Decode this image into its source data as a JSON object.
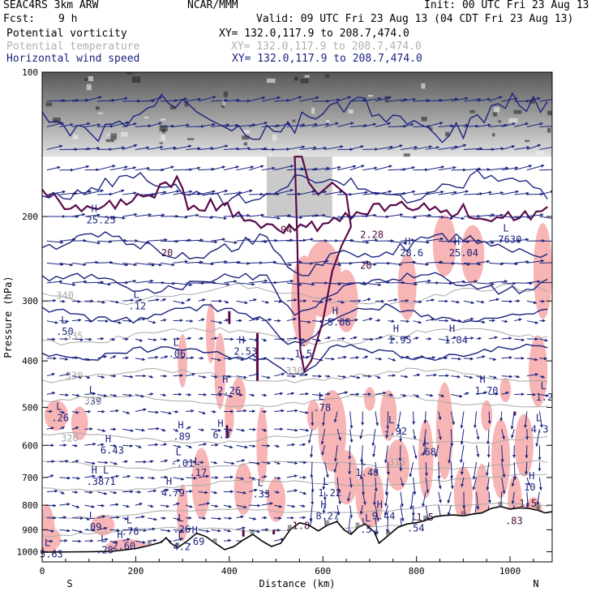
{
  "header": {
    "model_label": "SEAC4RS  3km ARW",
    "fcst_label": "Fcst:",
    "fcst_value": "9 h",
    "org": "NCAR/MMM",
    "init": "Init: 00 UTC Fri 23 Aug 13",
    "valid": "Valid: 09 UTC Fri 23 Aug 13 (04 CDT Fri 23 Aug 13)",
    "fields": [
      {
        "name": "Potential vorticity",
        "xy": "XY= 132.0,117.9 to 208.7,474.0",
        "color": "#000000"
      },
      {
        "name": "Potential temperature",
        "xy": "XY= 132.0,117.9 to 208.7,474.0",
        "color": "#b0b0b0"
      },
      {
        "name": "Horizontal wind speed",
        "xy": "XY= 132.0,117.9 to 208.7,474.0",
        "color": "#1a237e"
      }
    ]
  },
  "chart_data": {
    "type": "cross-section",
    "xlabel": "Distance (km)",
    "ylabel": "Pressure (hPa)",
    "x_ticks": [
      0,
      200,
      400,
      600,
      800,
      1000
    ],
    "y_ticks": [
      100,
      200,
      300,
      400,
      500,
      600,
      700,
      800,
      900,
      1000
    ],
    "xlim": [
      0,
      1090
    ],
    "ylim": [
      100,
      1050
    ],
    "y_scale": "log",
    "left_end_label": "S",
    "right_end_label": "N",
    "colors": {
      "pv_fill": "#f7b5b5",
      "pv_contour": "#5a0a4a",
      "wind_contour": "#1a237e",
      "theta": "#a8a8a8",
      "terrain": "#000000",
      "strat_shade": "#5a5a5a"
    },
    "theta_contours": [
      {
        "label": "340",
        "x": 30,
        "p": 292
      },
      {
        "label": "335",
        "x": 50,
        "p": 355
      },
      {
        "label": "330",
        "x": 50,
        "p": 430
      },
      {
        "label": "330",
        "x": 520,
        "p": 420
      },
      {
        "label": "325",
        "x": 90,
        "p": 485
      },
      {
        "label": "320",
        "x": 40,
        "p": 580
      },
      {
        "label": "315",
        "x": 740,
        "p": 650
      }
    ],
    "extrema_labels": [
      {
        "kind": "H",
        "value": "25.25",
        "x": 105,
        "p": 205
      },
      {
        "kind": "",
        "value": "20",
        "x": 265,
        "p": 240
      },
      {
        "kind": "L",
        "value": ".12",
        "x": 195,
        "p": 310
      },
      {
        "kind": "L",
        "value": ".50",
        "x": 40,
        "p": 350
      },
      {
        "kind": "L",
        "value": ".06",
        "x": 280,
        "p": 390
      },
      {
        "kind": "H",
        "value": "2.53",
        "x": 420,
        "p": 385
      },
      {
        "kind": "H",
        "value": "2.26",
        "x": 385,
        "p": 465
      },
      {
        "kind": "L",
        "value": ".39",
        "x": 100,
        "p": 490
      },
      {
        "kind": "L",
        "value": ".26",
        "x": 30,
        "p": 530
      },
      {
        "kind": "H",
        "value": ".89",
        "x": 290,
        "p": 580
      },
      {
        "kind": "H",
        "value": "6.3",
        "x": 375,
        "p": 575
      },
      {
        "kind": "H",
        "value": "6.43",
        "x": 135,
        "p": 620
      },
      {
        "kind": "L",
        "value": "-.01",
        "x": 285,
        "p": 660
      },
      {
        "kind": "L",
        "value": ".17",
        "x": 325,
        "p": 690
      },
      {
        "kind": "H L",
        "value": ".3871",
        "x": 105,
        "p": 720
      },
      {
        "kind": "H",
        "value": "4.79",
        "x": 265,
        "p": 760
      },
      {
        "kind": "L",
        "value": ".33",
        "x": 460,
        "p": 765
      },
      {
        "kind": "L",
        "value": "1.22",
        "x": 600,
        "p": 760
      },
      {
        "kind": "H",
        "value": "8.27",
        "x": 595,
        "p": 850
      },
      {
        "kind": "H",
        "value": "9.44",
        "x": 715,
        "p": 850
      },
      {
        "kind": "L",
        "value": ".78",
        "x": 590,
        "p": 505
      },
      {
        "kind": "L",
        "value": "-.92",
        "x": 740,
        "p": 565
      },
      {
        "kind": "L",
        "value": ".68",
        "x": 815,
        "p": 625
      },
      {
        "kind": "L",
        "value": "1.48",
        "x": 680,
        "p": 690
      },
      {
        "kind": "H",
        "value": "1.95",
        "x": 750,
        "p": 365
      },
      {
        "kind": "H",
        "value": "1.04",
        "x": 870,
        "p": 365
      },
      {
        "kind": "H",
        "value": "1.70",
        "x": 935,
        "p": 465
      },
      {
        "kind": "H",
        "value": "5.08",
        "x": 620,
        "p": 335
      },
      {
        "kind": "L",
        "value": "1.5",
        "x": 550,
        "p": 390
      },
      {
        "kind": "H",
        "value": "28.6",
        "x": 775,
        "p": 240
      },
      {
        "kind": "",
        "value": "2.28",
        "x": 690,
        "p": 220
      },
      {
        "kind": "",
        "value": "20",
        "x": 690,
        "p": 255
      },
      {
        "kind": "H",
        "value": "25.04",
        "x": 880,
        "p": 240
      },
      {
        "kind": "L",
        "value": "7630",
        "x": 985,
        "p": 225
      },
      {
        "kind": "",
        "value": "94",
        "x": 520,
        "p": 215
      },
      {
        "kind": "L",
        "value": "1.2",
        "x": 1065,
        "p": 480
      },
      {
        "kind": "L",
        "value": "4.3",
        "x": 1055,
        "p": 560
      },
      {
        "kind": "H",
        "value": "10",
        "x": 1040,
        "p": 740
      },
      {
        "kind": "L",
        "value": ".09",
        "x": 100,
        "p": 895
      },
      {
        "kind": "L",
        "value": ".76",
        "x": 180,
        "p": 915
      },
      {
        "kind": "L",
        "value": ".26",
        "x": 290,
        "p": 905
      },
      {
        "kind": "H",
        "value": "2.60",
        "x": 160,
        "p": 980
      },
      {
        "kind": "L",
        "value": ".28",
        "x": 125,
        "p": 1000
      },
      {
        "kind": "L",
        "value": "5.63",
        "x": 5,
        "p": 1020
      },
      {
        "kind": "H",
        "value": ".69",
        "x": 320,
        "p": 960
      },
      {
        "kind": "L",
        "value": "4.2",
        "x": 290,
        "p": 985
      },
      {
        "kind": "L",
        "value": ".5",
        "x": 690,
        "p": 905
      },
      {
        "kind": "L",
        "value": ".54",
        "x": 790,
        "p": 900
      },
      {
        "kind": "",
        "value": "1.5",
        "x": 810,
        "p": 855
      },
      {
        "kind": "",
        "value": "1.5",
        "x": 1030,
        "p": 800
      },
      {
        "kind": "",
        "value": ".83",
        "x": 1000,
        "p": 870
      },
      {
        "kind": "",
        "value": "1.8",
        "x": 545,
        "p": 890
      }
    ],
    "terrain_profile": [
      [
        0,
        1002
      ],
      [
        100,
        1000
      ],
      [
        150,
        998
      ],
      [
        200,
        985
      ],
      [
        230,
        970
      ],
      [
        255,
        955
      ],
      [
        265,
        935
      ],
      [
        275,
        960
      ],
      [
        290,
        980
      ],
      [
        310,
        950
      ],
      [
        330,
        915
      ],
      [
        350,
        930
      ],
      [
        370,
        960
      ],
      [
        390,
        990
      ],
      [
        410,
        975
      ],
      [
        430,
        945
      ],
      [
        450,
        920
      ],
      [
        470,
        950
      ],
      [
        490,
        975
      ],
      [
        510,
        960
      ],
      [
        530,
        900
      ],
      [
        550,
        870
      ],
      [
        570,
        880
      ],
      [
        590,
        905
      ],
      [
        610,
        880
      ],
      [
        630,
        865
      ],
      [
        645,
        900
      ],
      [
        660,
        920
      ],
      [
        675,
        890
      ],
      [
        690,
        875
      ],
      [
        710,
        910
      ],
      [
        720,
        960
      ],
      [
        740,
        925
      ],
      [
        760,
        890
      ],
      [
        780,
        875
      ],
      [
        800,
        870
      ],
      [
        820,
        860
      ],
      [
        840,
        845
      ],
      [
        860,
        840
      ],
      [
        880,
        838
      ],
      [
        900,
        842
      ],
      [
        920,
        835
      ],
      [
        940,
        830
      ],
      [
        960,
        812
      ],
      [
        980,
        805
      ],
      [
        1000,
        815
      ],
      [
        1020,
        810
      ],
      [
        1040,
        812
      ],
      [
        1060,
        820
      ],
      [
        1075,
        830
      ],
      [
        1090,
        825
      ]
    ]
  }
}
